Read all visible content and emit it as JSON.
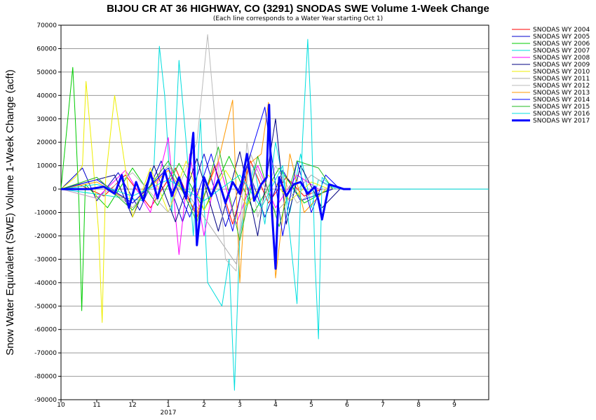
{
  "chart_data": {
    "type": "line",
    "title": "BIJOU CR AT 36 HIGHWAY, CO (3291) SNODAS SWE Volume 1-Week Change",
    "subtitle": "(Each line corresponds to a Water Year starting Oct 1)",
    "ylabel": "Snow Water Equivalent (SWE) Volume 1-Week Change (acft)",
    "xlabel": "",
    "ylim": [
      -90000,
      70000
    ],
    "yticks": [
      70000,
      60000,
      50000,
      40000,
      30000,
      20000,
      10000,
      0,
      -10000,
      -20000,
      -30000,
      -40000,
      -50000,
      -60000,
      -70000,
      -80000,
      -90000
    ],
    "ytick_labels": [
      "70000",
      "60000",
      "50000",
      "40000",
      "30000",
      "20000",
      "10000",
      "0",
      "-10000",
      "-20000",
      "-30000",
      "-40000",
      "-50000",
      "-60000",
      "-70000",
      "-80000",
      "-90000"
    ],
    "xlim": [
      10,
      10.98
    ],
    "xticks": [
      10,
      11,
      12,
      1,
      2,
      3,
      4,
      5,
      6,
      7,
      8,
      9
    ],
    "xtick_labels": [
      "10",
      "11",
      "12",
      "1",
      "2",
      "3",
      "4",
      "5",
      "6",
      "7",
      "8",
      "9"
    ],
    "x_sublabel": "2017",
    "grid": "horizontal",
    "legend_position": "right",
    "series": [
      {
        "name": "SNODAS WY 2004",
        "color": "#ff0000",
        "width": 1,
        "x": [
          10.0,
          10.5,
          11.2,
          11.8,
          12.5,
          1.2,
          1.8,
          2.3,
          2.8,
          3.3,
          3.8,
          4.3,
          4.8,
          5.3
        ],
        "values": [
          0,
          2000,
          -3000,
          6000,
          -8000,
          9000,
          -12000,
          10000,
          -15000,
          12000,
          -6000,
          5000,
          -3000,
          0
        ]
      },
      {
        "name": "SNODAS WY 2005",
        "color": "#0000cc",
        "width": 1,
        "x": [
          10.0,
          10.6,
          11.0,
          11.6,
          12.2,
          12.8,
          1.4,
          2.0,
          2.6,
          3.2,
          3.7,
          4.2,
          4.7,
          5.6
        ],
        "values": [
          0,
          9000,
          -5000,
          7000,
          -9000,
          12000,
          -14000,
          15000,
          -16000,
          10000,
          -12000,
          8000,
          -5000,
          0
        ]
      },
      {
        "name": "SNODAS WY 2006",
        "color": "#00cc00",
        "width": 1,
        "x": [
          10.0,
          10.33,
          10.4,
          10.5,
          10.58,
          10.68,
          11.3,
          12.0,
          12.7,
          1.3,
          2.0,
          2.7,
          3.4,
          4.1,
          4.8,
          5.5
        ],
        "values": [
          0,
          52000,
          30000,
          -5000,
          -52000,
          2000,
          -8000,
          9000,
          -7000,
          11000,
          -9000,
          14000,
          -10000,
          9000,
          -6000,
          0
        ]
      },
      {
        "name": "SNODAS WY 2007",
        "color": "#00dddd",
        "width": 1,
        "x": [
          10.0,
          12.3,
          12.6,
          12.75,
          12.9,
          1.1,
          1.3,
          1.5,
          1.7,
          1.9,
          2.1,
          2.5,
          2.7,
          2.85,
          3.0,
          3.4,
          3.7,
          4.0,
          4.4,
          4.7,
          5.0,
          5.2,
          5.7
        ],
        "values": [
          0,
          -5000,
          10000,
          61000,
          40000,
          -10000,
          55000,
          20000,
          -20000,
          30000,
          -40000,
          -50000,
          -30000,
          -86000,
          -20000,
          10000,
          -15000,
          20000,
          -10000,
          15000,
          -8000,
          4000,
          0
        ]
      },
      {
        "name": "SNODAS WY 2008",
        "color": "#ff00ff",
        "width": 1,
        "x": [
          10.0,
          11.0,
          11.8,
          12.5,
          1.0,
          1.3,
          1.6,
          2.0,
          2.4,
          2.9,
          3.5,
          4.0,
          4.6,
          5.2
        ],
        "values": [
          0,
          -4000,
          8000,
          -10000,
          22000,
          -28000,
          15000,
          -20000,
          12000,
          -15000,
          10000,
          -8000,
          6000,
          0
        ]
      },
      {
        "name": "SNODAS WY 2009",
        "color": "#000080",
        "width": 1,
        "x": [
          10.0,
          11.5,
          12.0,
          12.6,
          1.2,
          1.8,
          2.4,
          3.0,
          3.5,
          3.8,
          4.0,
          4.3,
          4.7,
          5.3,
          5.8
        ],
        "values": [
          0,
          6000,
          -12000,
          10000,
          -14000,
          13000,
          -18000,
          16000,
          -20000,
          10000,
          30000,
          -15000,
          10000,
          -8000,
          0
        ]
      },
      {
        "name": "SNODAS WY 2010",
        "color": "#eeee00",
        "width": 1,
        "x": [
          10.0,
          10.4,
          10.6,
          10.7,
          10.85,
          11.05,
          11.15,
          11.25,
          11.5,
          12.0,
          12.5,
          1.0,
          1.5,
          2.0,
          2.6,
          3.2,
          3.8,
          4.4,
          5.0,
          5.5
        ],
        "values": [
          0,
          5000,
          10000,
          46000,
          20000,
          -18000,
          -57000,
          5000,
          40000,
          -12000,
          9000,
          -10000,
          12000,
          -9000,
          8000,
          -7000,
          6000,
          -5000,
          3000,
          0
        ]
      },
      {
        "name": "SNODAS WY 2011",
        "color": "#aaaaaa",
        "width": 1,
        "x": [
          10.0,
          11.0,
          12.0,
          1.0,
          2.0,
          2.9,
          3.3,
          4.0,
          5.0,
          5.6
        ],
        "values": [
          0,
          5000,
          -8000,
          10000,
          -12000,
          -32000,
          15000,
          -10000,
          6000,
          0
        ]
      },
      {
        "name": "SNODAS WY 2012",
        "color": "#bbbbbb",
        "width": 1,
        "x": [
          10.0,
          11.0,
          12.0,
          1.0,
          1.8,
          2.1,
          2.25,
          2.4,
          2.6,
          2.9,
          3.2,
          3.5,
          4.0,
          4.6,
          5.2
        ],
        "values": [
          0,
          -4000,
          7000,
          -10000,
          20000,
          66000,
          40000,
          10000,
          -30000,
          -35000,
          20000,
          -12000,
          10000,
          -6000,
          0
        ]
      },
      {
        "name": "SNODAS WY 2013",
        "color": "#ff9900",
        "width": 1,
        "x": [
          10.0,
          11.0,
          12.0,
          1.0,
          1.8,
          2.4,
          2.8,
          3.0,
          3.2,
          3.6,
          3.8,
          4.0,
          4.4,
          4.8,
          5.4
        ],
        "values": [
          0,
          3000,
          -6000,
          8000,
          -10000,
          12000,
          38000,
          -40000,
          10000,
          15000,
          37000,
          -38000,
          15000,
          -10000,
          0
        ]
      },
      {
        "name": "SNODAS WY 2014",
        "color": "#0000ff",
        "width": 1,
        "x": [
          10.0,
          11.0,
          12.0,
          1.0,
          1.6,
          2.2,
          2.8,
          3.2,
          3.7,
          4.2,
          4.6,
          5.0,
          5.4,
          5.8
        ],
        "values": [
          0,
          4000,
          -6000,
          9000,
          -12000,
          15000,
          -18000,
          10000,
          35000,
          -20000,
          12000,
          -10000,
          6000,
          0
        ]
      },
      {
        "name": "SNODAS WY 2015",
        "color": "#22bb22",
        "width": 1,
        "x": [
          10.0,
          11.0,
          12.0,
          1.0,
          1.8,
          2.4,
          3.0,
          3.5,
          4.1,
          4.6,
          5.2,
          5.6
        ],
        "values": [
          0,
          5000,
          -9000,
          12000,
          -14000,
          18000,
          -22000,
          14000,
          -16000,
          12000,
          9000,
          0
        ]
      },
      {
        "name": "SNODAS WY 2016",
        "color": "#00e0e0",
        "width": 1,
        "x": [
          10.0,
          11.0,
          12.0,
          1.0,
          2.0,
          3.0,
          3.6,
          4.2,
          4.6,
          4.75,
          4.9,
          5.0,
          5.1,
          5.2,
          5.3,
          5.5,
          5.8,
          6.1,
          7.0,
          8.0,
          9.0,
          10.0
        ],
        "values": [
          0,
          2000,
          -3000,
          4000,
          -5000,
          6000,
          -8000,
          10000,
          -49000,
          20000,
          64000,
          30000,
          -30000,
          -64000,
          5000,
          2000,
          0,
          0,
          0,
          0,
          0,
          0
        ]
      },
      {
        "name": "SNODAS WY 2017",
        "color": "#0000ff",
        "width": 3,
        "x": [
          10.0,
          10.8,
          11.2,
          11.5,
          11.7,
          11.9,
          12.1,
          12.3,
          12.5,
          12.7,
          12.9,
          1.1,
          1.3,
          1.5,
          1.7,
          1.8,
          2.0,
          2.2,
          2.4,
          2.6,
          2.8,
          3.0,
          3.2,
          3.4,
          3.6,
          3.75,
          3.82,
          3.9,
          4.0,
          4.1,
          4.3,
          4.5,
          4.7,
          4.9,
          5.1,
          5.2,
          5.3,
          5.5,
          5.7,
          5.9,
          6.1
        ],
        "values": [
          0,
          0,
          1000,
          -2000,
          6000,
          -8000,
          3000,
          -5000,
          7000,
          -4000,
          8000,
          -3000,
          5000,
          -4000,
          24000,
          -24000,
          5000,
          -3000,
          4000,
          -6000,
          3000,
          -2000,
          15000,
          -5000,
          2000,
          5000,
          36000,
          -10000,
          -34000,
          5000,
          -3000,
          2000,
          3000,
          -2000,
          1000,
          -5000,
          -13000,
          2000,
          1000,
          0,
          0
        ]
      }
    ]
  }
}
